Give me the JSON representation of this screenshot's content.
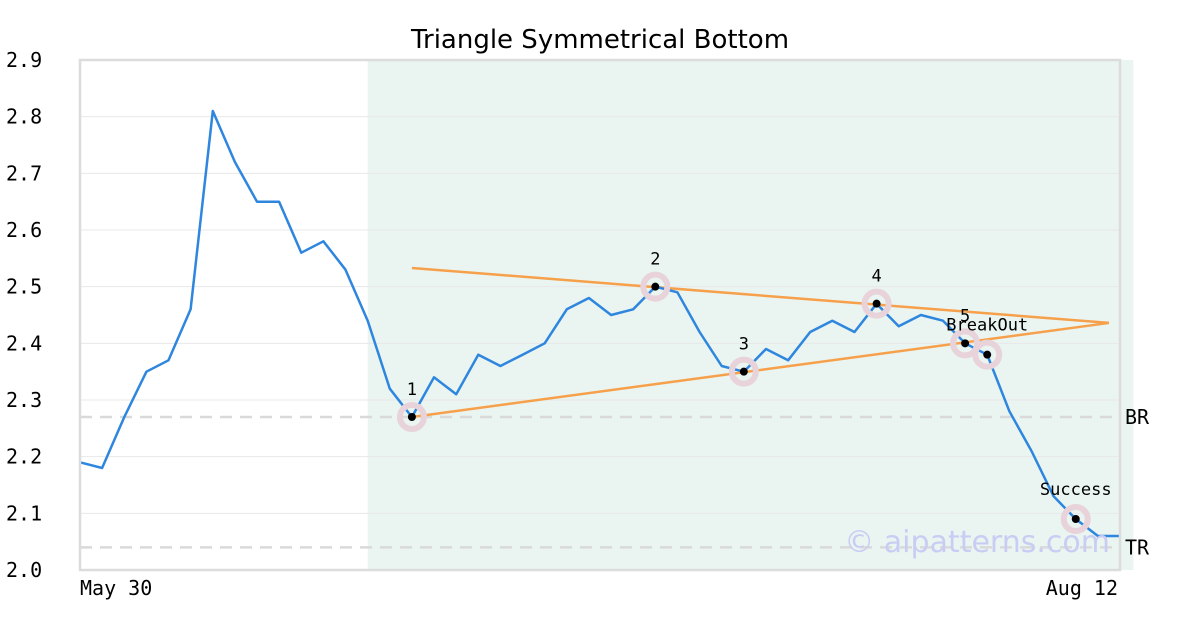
{
  "chart_data": {
    "type": "line",
    "title": "Triangle Symmetrical Bottom",
    "xlabel": "",
    "ylabel": "",
    "ylim": [
      2.0,
      2.9
    ],
    "y_ticks": [
      "2.0",
      "2.1",
      "2.2",
      "2.3",
      "2.4",
      "2.5",
      "2.6",
      "2.7",
      "2.8",
      "2.9"
    ],
    "x_tick_labels": [
      "May 30",
      "Aug 12"
    ],
    "grid": true,
    "colors": {
      "price": "#2e86de",
      "trendline": "#f7a04b",
      "highlight": "#eaf5f1",
      "marker_halo": "#e8d3da",
      "level": "#d9d9d9",
      "watermark": "#c9cdf3"
    },
    "series": [
      {
        "values": [
          2.19,
          2.18,
          2.27,
          2.35,
          2.37,
          2.46,
          2.81,
          2.72,
          2.65,
          2.65,
          2.56,
          2.58,
          2.53,
          2.44,
          2.32,
          2.27,
          2.34,
          2.31,
          2.38,
          2.36,
          2.38,
          2.4,
          2.46,
          2.48,
          2.45,
          2.46,
          2.5,
          2.49,
          2.42,
          2.36,
          2.35,
          2.39,
          2.37,
          2.42,
          2.44,
          2.42,
          2.47,
          2.43,
          2.45,
          2.44,
          2.4,
          2.38,
          2.28,
          2.21,
          2.13,
          2.09,
          2.06,
          2.06
        ]
      }
    ],
    "highlight_range": [
      13.0,
      47.6
    ],
    "trendlines": [
      {
        "x": [
          15,
          46.5
        ],
        "y": [
          2.533,
          2.436
        ]
      },
      {
        "x": [
          15,
          46.5
        ],
        "y": [
          2.27,
          2.436
        ]
      }
    ],
    "levels": [
      {
        "label": "BR",
        "y": 2.27
      },
      {
        "label": "TR",
        "y": 2.04
      }
    ],
    "points": [
      {
        "label": "1",
        "x": 15,
        "y": 2.27
      },
      {
        "label": "2",
        "x": 26,
        "y": 2.5
      },
      {
        "label": "3",
        "x": 30,
        "y": 2.35
      },
      {
        "label": "4",
        "x": 36,
        "y": 2.47
      },
      {
        "label": "5",
        "x": 40,
        "y": 2.4
      },
      {
        "label": "BreakOut",
        "x": 41,
        "y": 2.38
      },
      {
        "label": "Success",
        "x": 45,
        "y": 2.09
      }
    ],
    "watermark": "© aipatterns.com"
  }
}
